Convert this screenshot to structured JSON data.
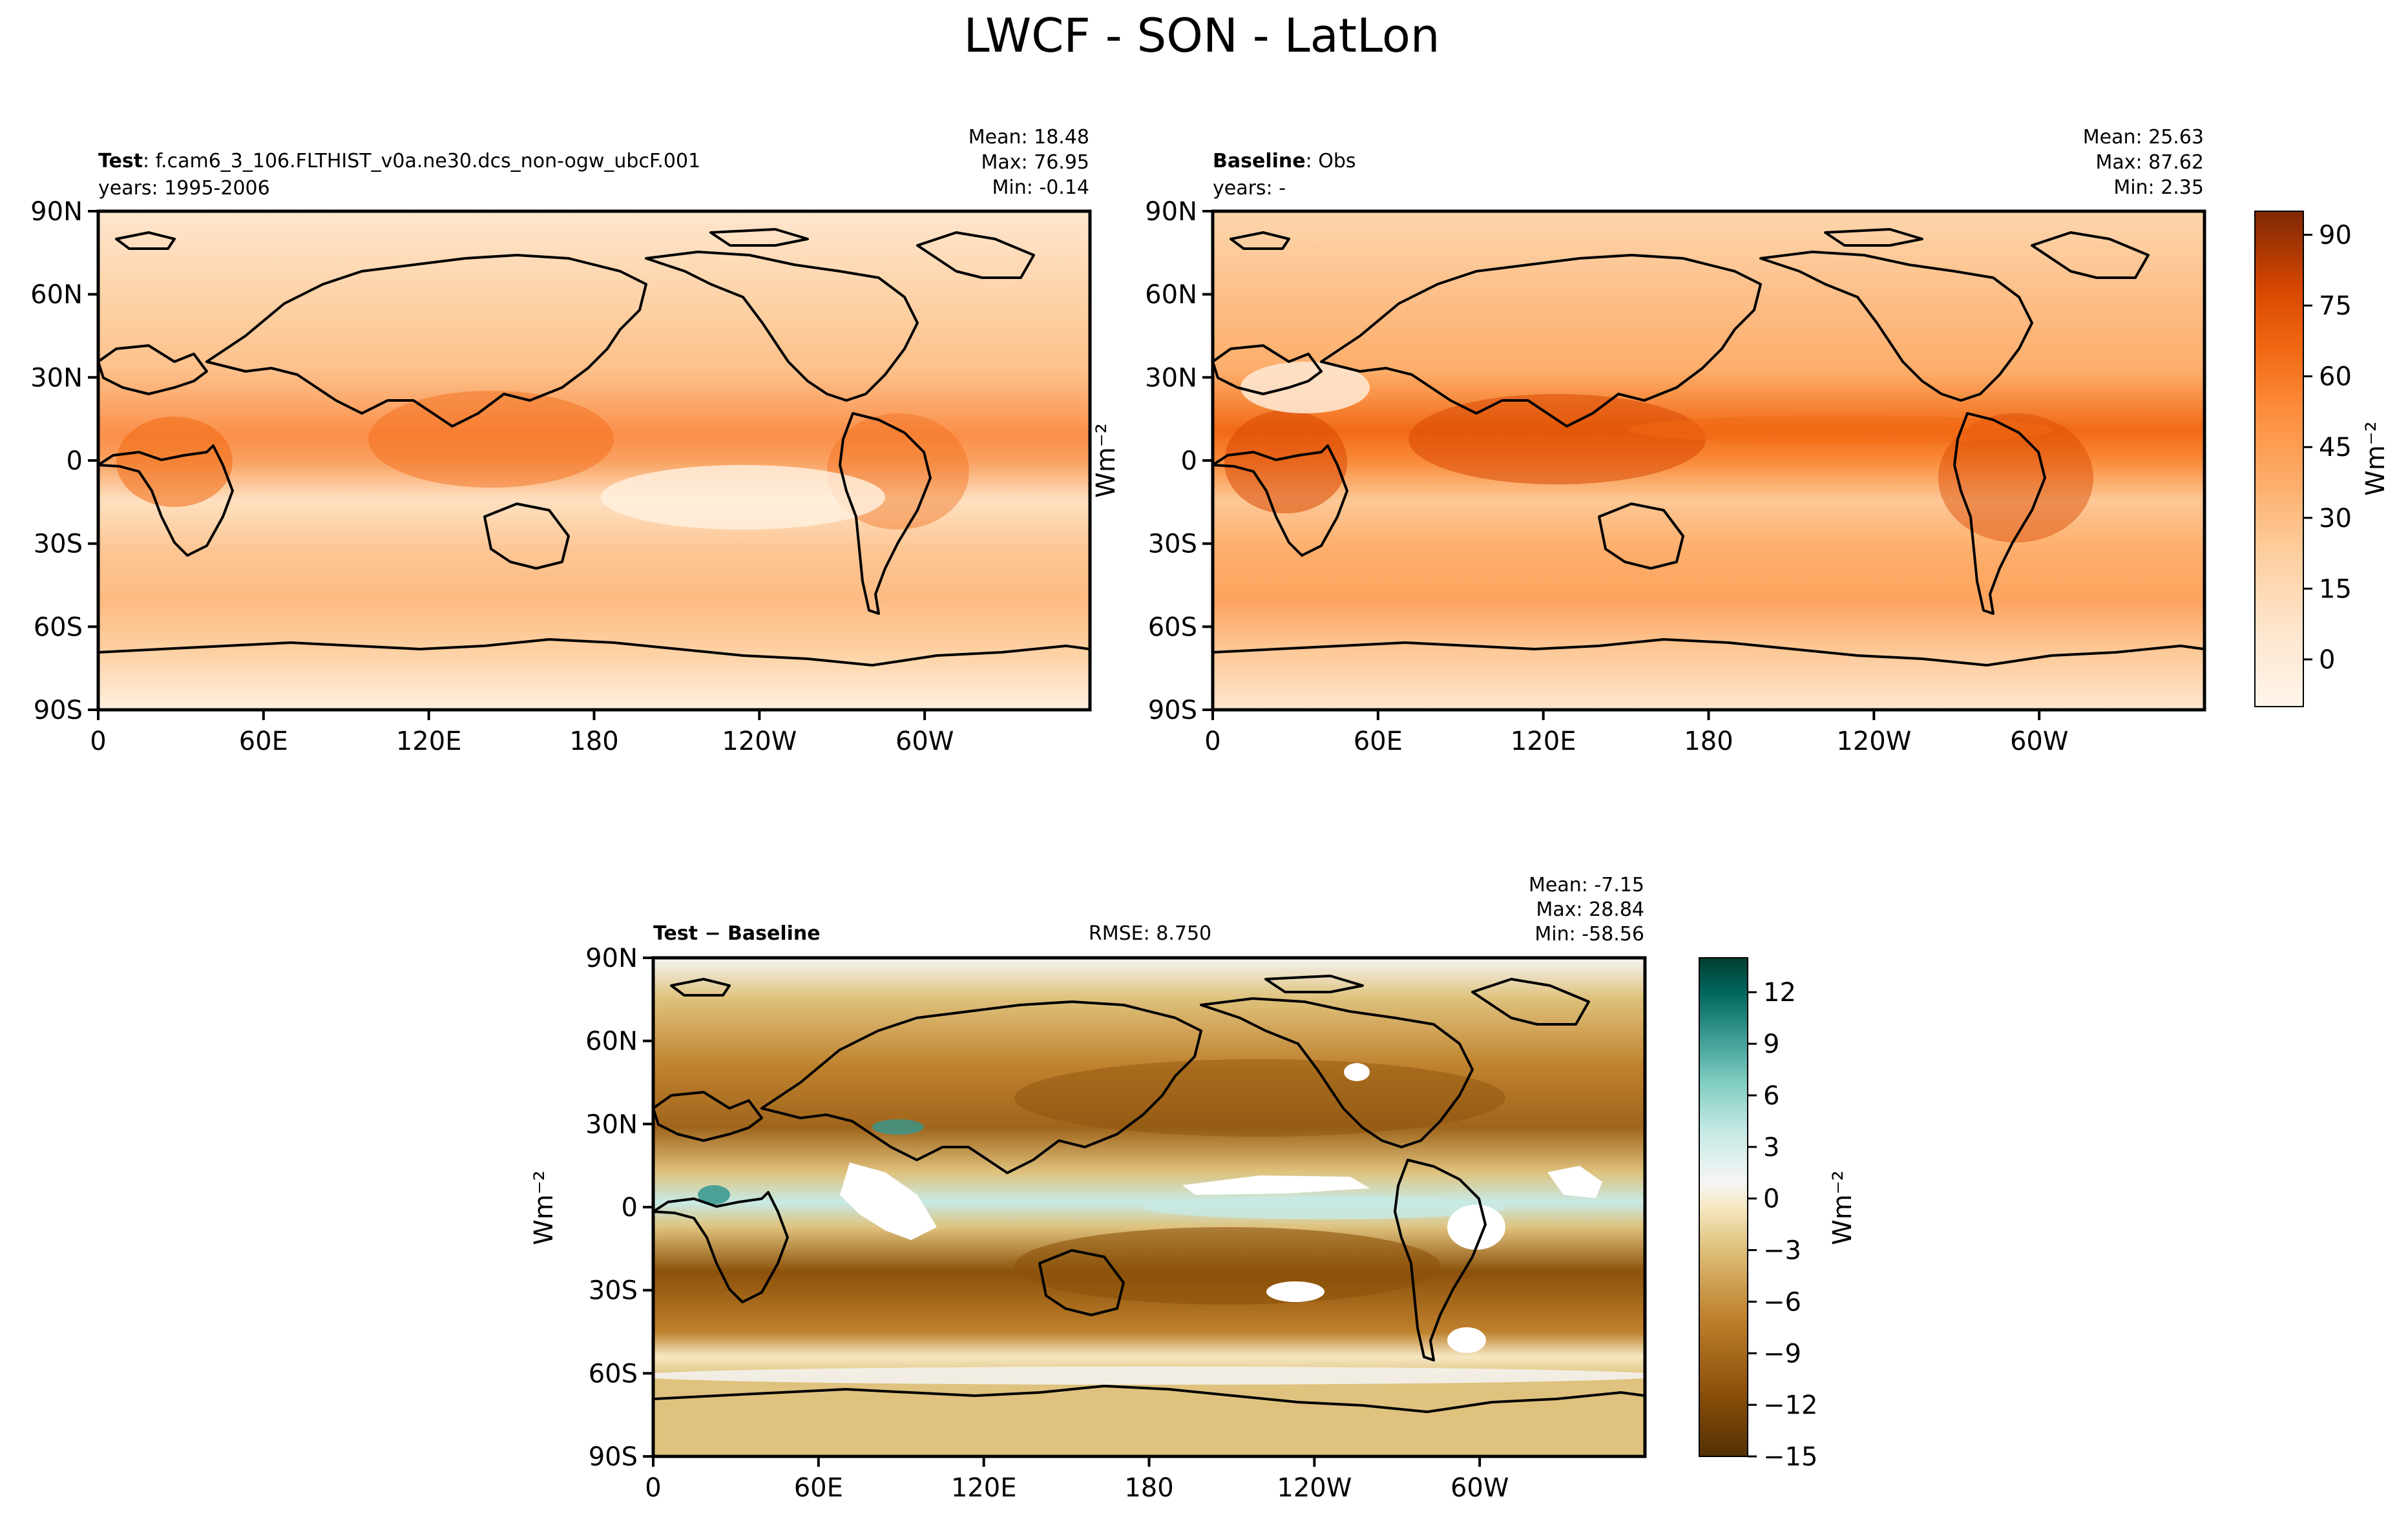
{
  "figure": {
    "title": "LWCF - SON - LatLon"
  },
  "colors": {
    "oranges": [
      "#fff5eb",
      "#fee6ce",
      "#fdd0a2",
      "#fdae6b",
      "#fd8d3c",
      "#f16913",
      "#d94801",
      "#a63603",
      "#7f2704"
    ],
    "brbg": [
      "#543005",
      "#8c510a",
      "#bf812d",
      "#dfc27d",
      "#f6e8c3",
      "#f5f5f5",
      "#c7eae5",
      "#80cdc1",
      "#35978f",
      "#01665e",
      "#003c30"
    ]
  },
  "panels": [
    {
      "id": "test",
      "label_bold": "Test",
      "label_rest": ": f.cam6_3_106.FLTHIST_v0a.ne30.dcs_non-ogw_ubcF.001",
      "years": "years: 1995-2006",
      "stats": [
        "Mean: 18.48",
        "Max: 76.95",
        "Min: -0.14"
      ],
      "ylabel": "",
      "palette": "oranges"
    },
    {
      "id": "baseline",
      "label_bold": "Baseline",
      "label_rest": ": Obs",
      "years": "years: -",
      "stats": [
        "Mean: 25.63",
        "Max: 87.62",
        "Min:  2.35"
      ],
      "ylabel": "Wm⁻²",
      "palette": "oranges"
    },
    {
      "id": "diff",
      "label_bold": "Test − Baseline",
      "rmse": "RMSE: 8.750",
      "stats": [
        "Mean: -7.15",
        "Max: 28.84",
        "Min: -58.56"
      ],
      "ylabel": "Wm⁻²",
      "palette": "brbg"
    }
  ],
  "chart_data": [
    {
      "type": "heatmap",
      "name": "Test",
      "projection": "PlateCarree, central longitude 180",
      "x_ticks": [
        "0",
        "60E",
        "120E",
        "180",
        "120W",
        "60W"
      ],
      "y_ticks": [
        "90N",
        "60N",
        "30N",
        "0",
        "30S",
        "60S",
        "90S"
      ],
      "xlim": [
        0,
        360
      ],
      "ylim": [
        -90,
        90
      ],
      "value_range": [
        -0.14,
        76.95
      ],
      "stats": {
        "mean": 18.48,
        "max": 76.95,
        "min": -0.14
      }
    },
    {
      "type": "heatmap",
      "name": "Baseline",
      "projection": "PlateCarree, central longitude 180",
      "x_ticks": [
        "0",
        "60E",
        "120E",
        "180",
        "120W",
        "60W"
      ],
      "y_ticks": [
        "90N",
        "60N",
        "30N",
        "0",
        "30S",
        "60S",
        "90S"
      ],
      "xlim": [
        0,
        360
      ],
      "ylim": [
        -90,
        90
      ],
      "value_range": [
        2.35,
        87.62
      ],
      "stats": {
        "mean": 25.63,
        "max": 87.62,
        "min": 2.35
      },
      "colorbar": {
        "ticks": [
          90,
          75,
          60,
          45,
          30,
          15,
          0
        ],
        "range": [
          -10,
          95
        ],
        "label": "Wm⁻²"
      }
    },
    {
      "type": "heatmap",
      "name": "Test − Baseline",
      "projection": "PlateCarree, central longitude 180",
      "x_ticks": [
        "0",
        "60E",
        "120E",
        "180",
        "120W",
        "60W"
      ],
      "y_ticks": [
        "90N",
        "60N",
        "30N",
        "0",
        "30S",
        "60S",
        "90S"
      ],
      "xlim": [
        0,
        360
      ],
      "ylim": [
        -90,
        90
      ],
      "value_range": [
        -58.56,
        28.84
      ],
      "stats": {
        "mean": -7.15,
        "max": 28.84,
        "min": -58.56,
        "rmse": 8.75
      },
      "colorbar": {
        "ticks": [
          12,
          9,
          6,
          3,
          0,
          -3,
          -6,
          -9,
          -12,
          -15
        ],
        "range": [
          -15,
          14
        ],
        "label": "Wm⁻²"
      }
    }
  ]
}
